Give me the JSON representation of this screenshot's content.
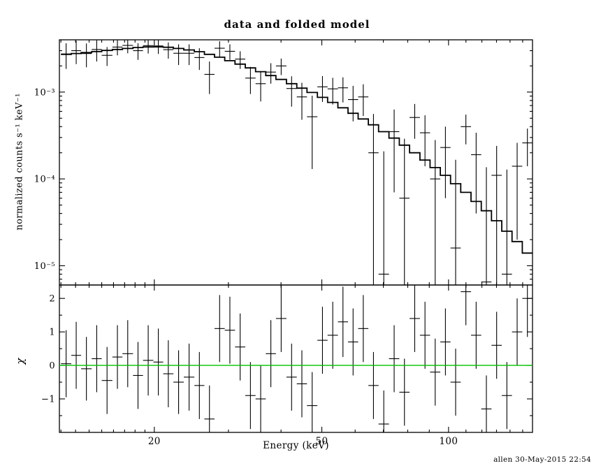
{
  "signature": "allen 30-May-2015 22:54",
  "chart_data": {
    "type": "scatter",
    "title": "data and folded model",
    "xlabel": "Energy (keV)",
    "xscale": "log",
    "xlim": [
      11.9,
      158.3
    ],
    "x_ticks": [
      {
        "value": 20,
        "label": "20"
      },
      {
        "value": 50,
        "label": "50"
      },
      {
        "value": 100,
        "label": "100"
      }
    ],
    "x_minor_ticks": [
      12,
      13,
      14,
      15,
      16,
      17,
      18,
      19,
      30,
      40,
      60,
      70,
      80,
      90,
      110,
      120,
      130,
      140,
      150
    ],
    "colors": {
      "data": "#000000",
      "model": "#000000",
      "zero_line": "#00c000"
    },
    "panels": [
      {
        "name": "spectrum",
        "ylabel": "normalized counts s⁻¹ keV⁻¹",
        "yscale": "log",
        "ylim": [
          6e-06,
          0.004
        ],
        "y_ticks": [
          {
            "value": 0.001,
            "label": "10⁻³"
          },
          {
            "value": 0.0001,
            "label": "10⁻⁴"
          },
          {
            "value": 1e-05,
            "label": "10⁻⁵"
          }
        ],
        "series": [
          {
            "name": "data",
            "style": "cross-with-errorbars"
          },
          {
            "name": "folded model",
            "style": "step-histogram"
          }
        ]
      },
      {
        "name": "residuals",
        "ylabel": "χ",
        "yscale": "linear",
        "ylim": [
          -2.0,
          2.4
        ],
        "y_ticks": [
          {
            "value": -1,
            "label": "−1"
          },
          {
            "value": 0,
            "label": "0"
          },
          {
            "value": 1,
            "label": "1"
          },
          {
            "value": 2,
            "label": "2"
          }
        ],
        "y_minor_ticks": [
          -1.5,
          -0.5,
          0.5,
          1.5
        ],
        "zero_line": 0
      }
    ],
    "columns": [
      "e_lo_keV",
      "e_hi_keV",
      "rate",
      "rate_err",
      "model",
      "chi",
      "chi_err"
    ],
    "bins": [
      [
        12.0,
        12.7,
        0.00275,
        0.0009,
        0.00272,
        0.05,
        1.0
      ],
      [
        12.7,
        13.4,
        0.003,
        0.0009,
        0.00278,
        0.3,
        1.0
      ],
      [
        13.4,
        14.2,
        0.00278,
        0.00085,
        0.00285,
        -0.1,
        0.95
      ],
      [
        14.2,
        15.0,
        0.0031,
        0.00085,
        0.00293,
        0.2,
        1.0
      ],
      [
        15.0,
        15.9,
        0.00265,
        0.00065,
        0.00302,
        -0.45,
        1.0
      ],
      [
        15.9,
        16.8,
        0.0033,
        0.00065,
        0.0031,
        0.25,
        0.95
      ],
      [
        16.8,
        17.8,
        0.00345,
        0.00065,
        0.00318,
        0.35,
        1.0
      ],
      [
        17.8,
        18.8,
        0.003,
        0.00065,
        0.00326,
        -0.3,
        1.0
      ],
      [
        18.8,
        19.9,
        0.00343,
        0.00065,
        0.00331,
        0.15,
        1.05
      ],
      [
        19.9,
        21.0,
        0.0034,
        0.00065,
        0.00332,
        0.1,
        1.0
      ],
      [
        21.0,
        22.2,
        0.00308,
        0.00065,
        0.00328,
        -0.25,
        1.0
      ],
      [
        22.2,
        23.5,
        0.0028,
        0.00075,
        0.00318,
        -0.5,
        0.95
      ],
      [
        23.5,
        24.9,
        0.0028,
        0.00075,
        0.00306,
        -0.35,
        1.0
      ],
      [
        24.9,
        26.3,
        0.0025,
        0.0007,
        0.00292,
        -0.6,
        1.0
      ],
      [
        26.3,
        27.8,
        0.0016,
        0.00065,
        0.00272,
        -1.6,
        1.0
      ],
      [
        27.8,
        29.4,
        0.0032,
        0.00065,
        0.00252,
        1.1,
        1.0
      ],
      [
        29.4,
        31.1,
        0.00295,
        0.0006,
        0.0023,
        1.05,
        1.0
      ],
      [
        31.1,
        32.9,
        0.0024,
        0.00055,
        0.0021,
        0.55,
        1.0
      ],
      [
        32.9,
        34.8,
        0.00145,
        0.0005,
        0.0019,
        -0.9,
        1.0
      ],
      [
        34.8,
        36.8,
        0.00125,
        0.00047,
        0.00172,
        -1.0,
        1.0
      ],
      [
        36.8,
        38.9,
        0.0017,
        0.00045,
        0.00155,
        0.35,
        1.0
      ],
      [
        38.9,
        41.2,
        0.002,
        0.00043,
        0.0014,
        1.4,
        1.0
      ],
      [
        41.2,
        43.6,
        0.0011,
        0.00042,
        0.00125,
        -0.35,
        1.0
      ],
      [
        43.6,
        46.1,
        0.00088,
        0.0004,
        0.00111,
        -0.55,
        1.0
      ],
      [
        46.1,
        48.8,
        0.00052,
        0.00039,
        0.00099,
        -1.2,
        1.0
      ],
      [
        48.8,
        51.6,
        0.00115,
        0.00038,
        0.00087,
        0.75,
        1.0
      ],
      [
        51.6,
        54.6,
        0.00109,
        0.00037,
        0.00076,
        0.9,
        1.0
      ],
      [
        54.6,
        57.7,
        0.00112,
        0.00036,
        0.00066,
        1.3,
        1.05
      ],
      [
        57.7,
        61.0,
        0.00082,
        0.00036,
        0.00057,
        0.7,
        1.0
      ],
      [
        61.0,
        64.5,
        0.00088,
        0.00035,
        0.00049,
        1.1,
        1.0
      ],
      [
        64.5,
        68.2,
        0.0002,
        0.00036,
        0.00042,
        -0.6,
        1.0
      ],
      [
        68.2,
        72.2,
        8e-06,
        0.0002,
        0.00035,
        -1.75,
        1.0
      ],
      [
        72.2,
        76.4,
        0.00035,
        0.00028,
        0.000295,
        0.2,
        1.0
      ],
      [
        76.4,
        80.8,
        6e-05,
        0.00023,
        0.000245,
        -0.8,
        1.0
      ],
      [
        80.8,
        85.5,
        0.00051,
        0.00022,
        0.0002,
        1.4,
        1.0
      ],
      [
        85.5,
        90.4,
        0.00034,
        0.0002,
        0.000165,
        0.9,
        1.0
      ],
      [
        90.4,
        95.6,
        0.0001,
        0.00018,
        0.000135,
        -0.2,
        1.0
      ],
      [
        95.6,
        101.1,
        0.00023,
        0.00017,
        0.00011,
        0.7,
        1.0
      ],
      [
        101.1,
        106.9,
        1.6e-05,
        0.00015,
        8.8e-05,
        -0.5,
        1.0
      ],
      [
        106.9,
        113.1,
        0.0004,
        0.00015,
        7e-05,
        2.2,
        1.0
      ],
      [
        113.1,
        119.6,
        0.00019,
        0.00015,
        5.5e-05,
        0.9,
        1.0
      ],
      [
        119.6,
        126.5,
        6.5e-06,
        0.00013,
        4.3e-05,
        -1.3,
        1.0
      ],
      [
        126.5,
        133.8,
        0.00011,
        0.00013,
        3.3e-05,
        0.6,
        1.0
      ],
      [
        133.8,
        141.5,
        8e-06,
        0.00012,
        2.5e-05,
        -0.9,
        1.0
      ],
      [
        141.5,
        149.7,
        0.00014,
        0.00012,
        1.9e-05,
        1.0,
        1.0
      ],
      [
        149.7,
        158.3,
        0.00026,
        0.00012,
        1.4e-05,
        2.0,
        1.15
      ]
    ]
  }
}
